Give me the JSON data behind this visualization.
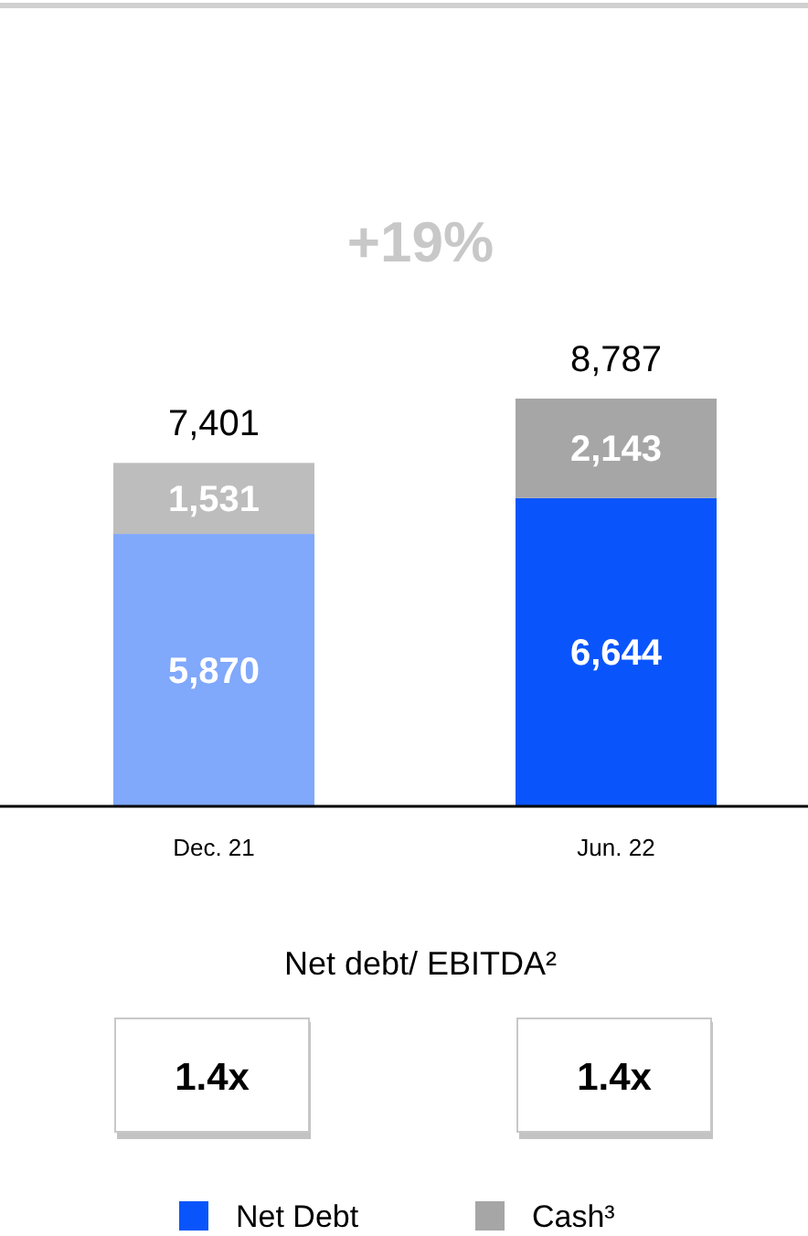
{
  "chart_data": {
    "type": "bar",
    "stacked": true,
    "categories": [
      "Dec. 21",
      "Jun. 22"
    ],
    "series": [
      {
        "name": "Net Debt",
        "color": "#0a55fb",
        "colors": [
          "#80a8fb",
          "#0a55fb"
        ],
        "values": [
          5870,
          6644
        ],
        "value_labels": [
          "5,870",
          "6,644"
        ]
      },
      {
        "name": "Cash³",
        "color": "#a6a6a6",
        "colors": [
          "#bdbdbd",
          "#a6a6a6"
        ],
        "values": [
          1531,
          2143
        ],
        "value_labels": [
          "1,531",
          "2,143"
        ]
      }
    ],
    "totals": [
      "7,401",
      "8,787"
    ],
    "legend": "bottom",
    "annotations": [
      "+19%",
      "Net debt/ EBITDA²",
      "1.4x",
      "1.4x"
    ]
  }
}
